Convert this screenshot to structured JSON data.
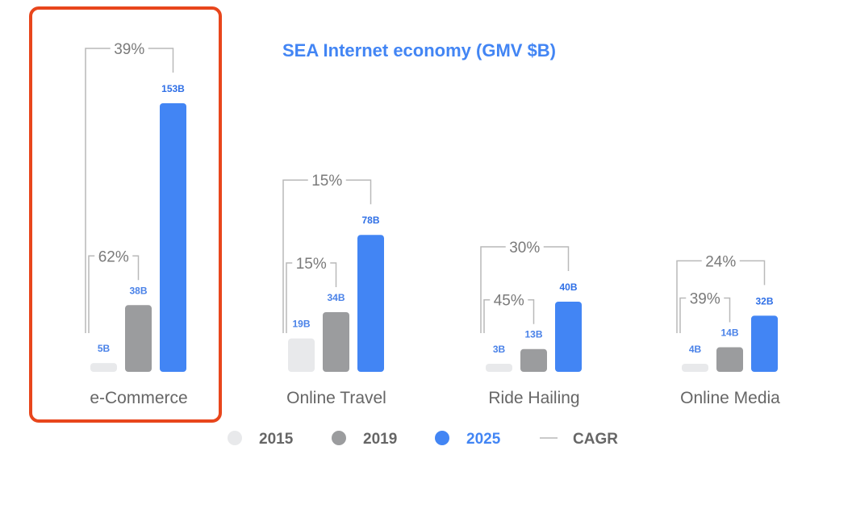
{
  "colors": {
    "y2015": "#e8e9eb",
    "y2019": "#9b9c9e",
    "y2025": "#4285f4",
    "bracket": "#b9b9b9",
    "highlight": "#e8461c",
    "label_2025": "#2f6fe6",
    "label_other": "#4a82e8",
    "legend_text": "#666666"
  },
  "chart_data": {
    "type": "bar",
    "title": "SEA Internet economy (GMV $B)",
    "categories": [
      "e-Commerce",
      "Online Travel",
      "Ride Hailing",
      "Online Media"
    ],
    "unit": "$B",
    "series": [
      {
        "name": "2015",
        "values": [
          5,
          19,
          3,
          4
        ],
        "labels": [
          "5B",
          "19B",
          "3B",
          "4B"
        ]
      },
      {
        "name": "2019",
        "values": [
          38,
          34,
          13,
          14
        ],
        "labels": [
          "38B",
          "34B",
          "13B",
          "14B"
        ]
      },
      {
        "name": "2025",
        "values": [
          153,
          78,
          40,
          32
        ],
        "labels": [
          "153B",
          "78B",
          "40B",
          "32B"
        ]
      }
    ],
    "cagr_2015_2019": [
      "62%",
      "15%",
      "45%",
      "39%"
    ],
    "cagr_2015_2025": [
      "39%",
      "15%",
      "30%",
      "24%"
    ],
    "legend": [
      "2015",
      "2019",
      "2025",
      "CAGR"
    ],
    "legend_position": "bottom",
    "highlighted_category": "e-Commerce"
  }
}
